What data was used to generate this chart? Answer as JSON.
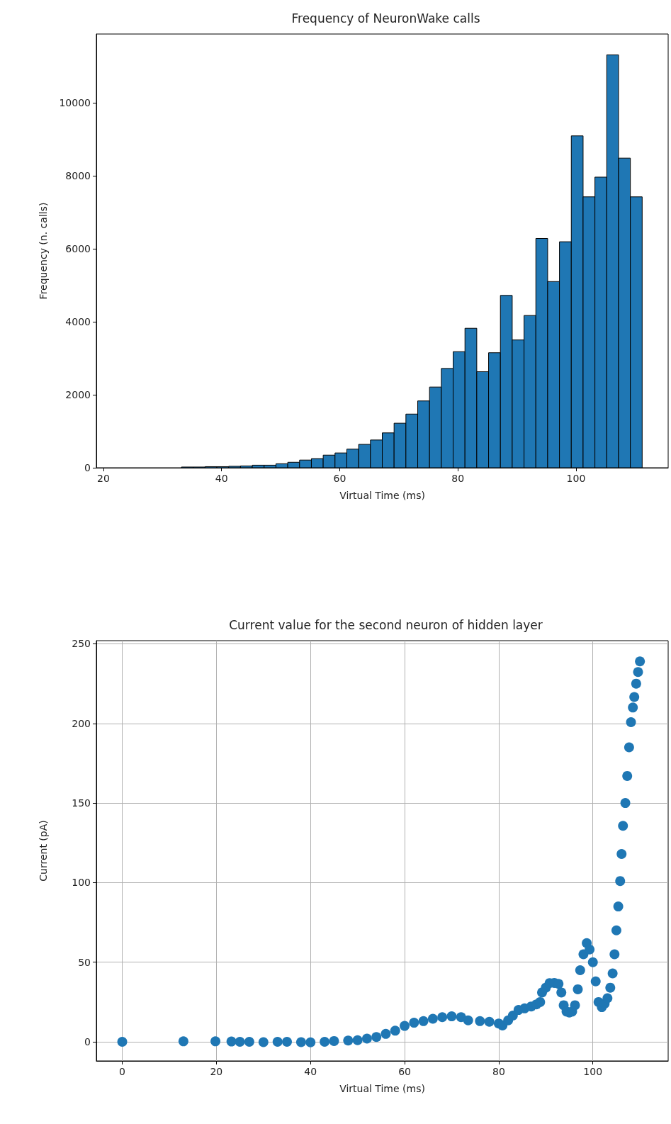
{
  "chart_data": [
    {
      "type": "histogram",
      "title": "Frequency of NeuronWake calls",
      "xlabel": "Virtual Time (ms)",
      "ylabel": "Frequency (n. calls)",
      "color": "#1f77b4",
      "bins": [
        23.2,
        25.2,
        27.2,
        29.2,
        31.2,
        33.2,
        35.2,
        37.2,
        39.2,
        41.2,
        43.2,
        45.2,
        47.2,
        49.2,
        51.2,
        53.2,
        55.2,
        57.2,
        59.2,
        61.2,
        63.2,
        65.2,
        67.2,
        69.2,
        71.2,
        73.2,
        75.2,
        77.2,
        79.2,
        81.2,
        83.2,
        85.2,
        87.2,
        89.2,
        91.2,
        93.2,
        95.2,
        97.2,
        99.2,
        101.2,
        103.2,
        105.2,
        107.2,
        109.2,
        111.2
      ],
      "values": [
        null,
        null,
        null,
        null,
        null,
        20,
        20,
        30,
        30,
        40,
        50,
        70,
        70,
        110,
        150,
        210,
        250,
        345,
        405,
        510,
        640,
        760,
        955,
        1220,
        1470,
        1830,
        2210,
        2720,
        3180,
        3820,
        2630,
        3150,
        4720,
        3500,
        4170,
        6280,
        5100,
        6190,
        9090,
        7420,
        7960,
        11310,
        8480,
        7420
      ],
      "xlim": [
        18.8,
        115.6
      ],
      "ylim": [
        0,
        11880
      ],
      "xticks": [
        20,
        40,
        60,
        80,
        100
      ],
      "yticks": [
        0,
        2000,
        4000,
        6000,
        8000,
        10000
      ]
    },
    {
      "type": "scatter",
      "title": "Current value for the second neuron of hidden layer",
      "xlabel": "Virtual Time (ms)",
      "ylabel": "Current (pA)",
      "color": "#1f77b4",
      "marker": "circle",
      "grid": true,
      "x": [
        0,
        13,
        19.8,
        23.2,
        25,
        27,
        30,
        33,
        35,
        38,
        40,
        43,
        45,
        48,
        50,
        52,
        54,
        56,
        58,
        60,
        62,
        64,
        66,
        68,
        70,
        72,
        73.5,
        76,
        78,
        80,
        80.8,
        82,
        83,
        84.2,
        85.5,
        86.9,
        88,
        88.8,
        89.2,
        90,
        90.8,
        91.8,
        92.7,
        93.3,
        93.8,
        94.4,
        95,
        95.6,
        96.2,
        96.8,
        97.3,
        98,
        98.7,
        99.3,
        100,
        100.6,
        101.2,
        101.9,
        102.5,
        103.1,
        103.7,
        104.2,
        104.6,
        105,
        105.4,
        105.8,
        106.1,
        106.4,
        106.9,
        107.3,
        107.7,
        108.1,
        108.5,
        108.8,
        109.2,
        109.6,
        110
      ],
      "values": [
        0,
        0.3,
        0.3,
        0.2,
        0,
        0,
        -0.2,
        0,
        0,
        -0.2,
        -0.3,
        0,
        0.5,
        0.8,
        1,
        2,
        3,
        5,
        7,
        10,
        12,
        13,
        14.5,
        15.5,
        16,
        15.5,
        13.5,
        13,
        12.6,
        11.5,
        10.3,
        13.5,
        16.5,
        20,
        21,
        22.2,
        23.5,
        25,
        31,
        34,
        36.9,
        37,
        36.4,
        31,
        23,
        19,
        18.4,
        19,
        23,
        33,
        45,
        55,
        62,
        58,
        50,
        38,
        25,
        21.8,
        24,
        27.4,
        34,
        43,
        55,
        70,
        85,
        101,
        118,
        135.7,
        150,
        167,
        185,
        200.8,
        210,
        216.6,
        225,
        232.3,
        239
      ],
      "xlim": [
        -5.5,
        116
      ],
      "ylim": [
        -12,
        252
      ],
      "xticks": [
        0,
        20,
        40,
        60,
        80,
        100
      ],
      "yticks": [
        0,
        50,
        100,
        150,
        200,
        250
      ]
    }
  ]
}
